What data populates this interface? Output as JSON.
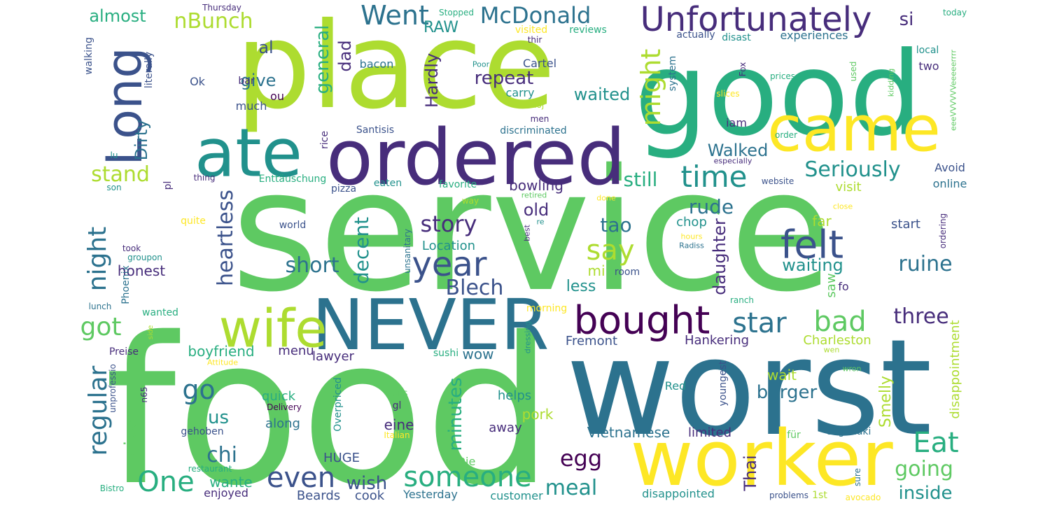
{
  "palette": {
    "c1": "#440154",
    "c2": "#472d7b",
    "c3": "#3b528b",
    "c4": "#2c728e",
    "c5": "#21918c",
    "c6": "#28ae80",
    "c7": "#5ec962",
    "c8": "#addc30",
    "c9": "#fde725",
    "background": "#ffffff"
  },
  "words": [
    {
      "text": "service",
      "color": "c7",
      "vertical": false
    },
    {
      "text": "food",
      "color": "c7",
      "vertical": false
    },
    {
      "text": "place",
      "color": "c8",
      "vertical": false
    },
    {
      "text": "good",
      "color": "c6",
      "vertical": false
    },
    {
      "text": "worst",
      "color": "c4",
      "vertical": false
    },
    {
      "text": "worker",
      "color": "c9",
      "vertical": false
    },
    {
      "text": "ordered",
      "color": "c2",
      "vertical": false
    },
    {
      "text": "ate",
      "color": "c5",
      "vertical": false
    },
    {
      "text": "came",
      "color": "c9",
      "vertical": false
    },
    {
      "text": "NEVER",
      "color": "c4",
      "vertical": false
    },
    {
      "text": "wife",
      "color": "c8",
      "vertical": false
    },
    {
      "text": "Long",
      "color": "c3",
      "vertical": true
    },
    {
      "text": "Unfortunately",
      "color": "c2",
      "vertical": false
    },
    {
      "text": "bought",
      "color": "c1",
      "vertical": false
    },
    {
      "text": "felt",
      "color": "c3",
      "vertical": false
    },
    {
      "text": "time",
      "color": "c5",
      "vertical": false
    },
    {
      "text": "might",
      "color": "c8",
      "vertical": true
    },
    {
      "text": "someone",
      "color": "c6",
      "vertical": false
    },
    {
      "text": "star",
      "color": "c4",
      "vertical": false
    },
    {
      "text": "bad",
      "color": "c7",
      "vertical": false
    },
    {
      "text": "Eat",
      "color": "c6",
      "vertical": false
    },
    {
      "text": "year",
      "color": "c3",
      "vertical": false
    },
    {
      "text": "say",
      "color": "c8",
      "vertical": false
    },
    {
      "text": "even",
      "color": "c3",
      "vertical": false
    },
    {
      "text": "One",
      "color": "c6",
      "vertical": false
    },
    {
      "text": "Went",
      "color": "c4",
      "vertical": false
    },
    {
      "text": "McDonald",
      "color": "c4",
      "vertical": false
    },
    {
      "text": "three",
      "color": "c2",
      "vertical": false
    },
    {
      "text": "ruine",
      "color": "c4",
      "vertical": false
    },
    {
      "text": "going",
      "color": "c7",
      "vertical": false
    },
    {
      "text": "inside",
      "color": "c5",
      "vertical": false
    },
    {
      "text": "Seriously",
      "color": "c5",
      "vertical": false
    },
    {
      "text": "regular",
      "color": "c4",
      "vertical": true
    },
    {
      "text": "night",
      "color": "c4",
      "vertical": true
    },
    {
      "text": "got",
      "color": "c7",
      "vertical": false
    },
    {
      "text": "go",
      "color": "c4",
      "vertical": false
    },
    {
      "text": "nBunch",
      "color": "c8",
      "vertical": false
    },
    {
      "text": "stand",
      "color": "c8",
      "vertical": false
    },
    {
      "text": "heartless",
      "color": "c3",
      "vertical": true
    },
    {
      "text": "story",
      "color": "c2",
      "vertical": false
    },
    {
      "text": "Blech",
      "color": "c3",
      "vertical": false
    },
    {
      "text": "short",
      "color": "c4",
      "vertical": false
    },
    {
      "text": "decent",
      "color": "c5",
      "vertical": true
    },
    {
      "text": "tao",
      "color": "c4",
      "vertical": false
    },
    {
      "text": "rude",
      "color": "c4",
      "vertical": false
    },
    {
      "text": "still",
      "color": "c6",
      "vertical": false
    },
    {
      "text": "waiting",
      "color": "c5",
      "vertical": false
    },
    {
      "text": "egg",
      "color": "c1",
      "vertical": false
    },
    {
      "text": "meal",
      "color": "c5",
      "vertical": false
    },
    {
      "text": "burger",
      "color": "c4",
      "vertical": false
    },
    {
      "text": "wish",
      "color": "c3",
      "vertical": false
    },
    {
      "text": "chi",
      "color": "c4",
      "vertical": false
    },
    {
      "text": "us",
      "color": "c5",
      "vertical": false
    },
    {
      "text": "given",
      "color": "c7",
      "vertical": true
    },
    {
      "text": "minutes",
      "color": "c6",
      "vertical": true
    },
    {
      "text": "general",
      "color": "c6",
      "vertical": true
    },
    {
      "text": "repeat",
      "color": "c2",
      "vertical": false
    },
    {
      "text": "waited",
      "color": "c5",
      "vertical": false
    },
    {
      "text": "Walked",
      "color": "c4",
      "vertical": false
    },
    {
      "text": "al",
      "color": "c3",
      "vertical": false
    },
    {
      "text": "give",
      "color": "c4",
      "vertical": false
    },
    {
      "text": "si",
      "color": "c2",
      "vertical": false
    },
    {
      "text": "almost",
      "color": "c6",
      "vertical": false
    },
    {
      "text": "RAW",
      "color": "c5",
      "vertical": false
    },
    {
      "text": "dad",
      "color": "c2",
      "vertical": true
    },
    {
      "text": "Hardly",
      "color": "c2",
      "vertical": true
    },
    {
      "text": "Dirty",
      "color": "c4",
      "vertical": true
    },
    {
      "text": "old",
      "color": "c2",
      "vertical": false
    },
    {
      "text": "bowling",
      "color": "c2",
      "vertical": false
    },
    {
      "text": "daughter",
      "color": "c2",
      "vertical": true
    },
    {
      "text": "less",
      "color": "c5",
      "vertical": false
    },
    {
      "text": "mi",
      "color": "c8",
      "vertical": false
    },
    {
      "text": "honest",
      "color": "c2",
      "vertical": false
    },
    {
      "text": "Location",
      "color": "c5",
      "vertical": false
    },
    {
      "text": "Charleston",
      "color": "c8",
      "vertical": false
    },
    {
      "text": "Hankering",
      "color": "c2",
      "vertical": false
    },
    {
      "text": "Fremont",
      "color": "c3",
      "vertical": false
    },
    {
      "text": "boyfriend",
      "color": "c6",
      "vertical": false
    },
    {
      "text": "menu",
      "color": "c2",
      "vertical": false
    },
    {
      "text": "lawyer",
      "color": "c2",
      "vertical": false
    },
    {
      "text": "wow",
      "color": "c4",
      "vertical": false
    },
    {
      "text": "Thai",
      "color": "c2",
      "vertical": true
    },
    {
      "text": "Smelly",
      "color": "c8",
      "vertical": true
    },
    {
      "text": "disappointment",
      "color": "c8",
      "vertical": true
    },
    {
      "text": "wait",
      "color": "c8",
      "vertical": false
    },
    {
      "text": "Vietnamese",
      "color": "c4",
      "vertical": false
    },
    {
      "text": "limited",
      "color": "c2",
      "vertical": false
    },
    {
      "text": "wante",
      "color": "c6",
      "vertical": false
    },
    {
      "text": "along",
      "color": "c4",
      "vertical": false
    },
    {
      "text": "quick",
      "color": "c6",
      "vertical": false
    },
    {
      "text": "HUGE",
      "color": "c3",
      "vertical": false
    },
    {
      "text": "eine",
      "color": "c2",
      "vertical": false
    },
    {
      "text": "pork",
      "color": "c8",
      "vertical": false
    },
    {
      "text": "helps",
      "color": "c5",
      "vertical": false
    },
    {
      "text": "away",
      "color": "c2",
      "vertical": false
    },
    {
      "text": "cook",
      "color": "c3",
      "vertical": false
    },
    {
      "text": "Beards",
      "color": "c3",
      "vertical": false
    },
    {
      "text": "enjoyed",
      "color": "c2",
      "vertical": false
    },
    {
      "text": "Yesterday",
      "color": "c4",
      "vertical": false
    },
    {
      "text": "customer",
      "color": "c5",
      "vertical": false
    },
    {
      "text": "disappointed",
      "color": "c5",
      "vertical": false
    },
    {
      "text": "Die",
      "color": "c7",
      "vertical": false
    },
    {
      "text": "visit",
      "color": "c8",
      "vertical": false
    },
    {
      "text": "start",
      "color": "c3",
      "vertical": false
    },
    {
      "text": "Avoid",
      "color": "c3",
      "vertical": false
    },
    {
      "text": "online",
      "color": "c4",
      "vertical": false
    },
    {
      "text": "far",
      "color": "c8",
      "vertical": false
    },
    {
      "text": "chop",
      "color": "c5",
      "vertical": false
    },
    {
      "text": "saw",
      "color": "c7",
      "vertical": true
    },
    {
      "text": "fo",
      "color": "c2",
      "vertical": false
    },
    {
      "text": "iam",
      "color": "c2",
      "vertical": false
    },
    {
      "text": "two",
      "color": "c2",
      "vertical": false
    },
    {
      "text": "local",
      "color": "c5",
      "vertical": false
    },
    {
      "text": "experiences",
      "color": "c4",
      "vertical": false
    },
    {
      "text": "actually",
      "color": "c3",
      "vertical": false
    },
    {
      "text": "disast",
      "color": "c5",
      "vertical": false
    },
    {
      "text": "reviews",
      "color": "c6",
      "vertical": false
    },
    {
      "text": "visited",
      "color": "c9",
      "vertical": false
    },
    {
      "text": "Stopped",
      "color": "c6",
      "vertical": false
    },
    {
      "text": "Thursday",
      "color": "c2",
      "vertical": false
    },
    {
      "text": "today",
      "color": "c6",
      "vertical": false
    },
    {
      "text": "walking",
      "color": "c3",
      "vertical": true
    },
    {
      "text": "literally",
      "color": "c3",
      "vertical": true
    },
    {
      "text": "bar",
      "color": "c2",
      "vertical": false
    },
    {
      "text": "Ok",
      "color": "c3",
      "vertical": false
    },
    {
      "text": "ou",
      "color": "c1",
      "vertical": false
    },
    {
      "text": "much",
      "color": "c3",
      "vertical": false
    },
    {
      "text": "bacon",
      "color": "c4",
      "vertical": false
    },
    {
      "text": "Cartel",
      "color": "c3",
      "vertical": false
    },
    {
      "text": "carry",
      "color": "c5",
      "vertical": false
    },
    {
      "text": "thir",
      "color": "c2",
      "vertical": false
    },
    {
      "text": "Poor",
      "color": "c5",
      "vertical": false
    },
    {
      "text": "moj",
      "color": "c8",
      "vertical": false
    },
    {
      "text": "men",
      "color": "c2",
      "vertical": false
    },
    {
      "text": "system",
      "color": "c4",
      "vertical": true
    },
    {
      "text": "Fox",
      "color": "c2",
      "vertical": true
    },
    {
      "text": "used",
      "color": "c7",
      "vertical": true
    },
    {
      "text": "prices",
      "color": "c6",
      "vertical": false
    },
    {
      "text": "slices",
      "color": "c9",
      "vertical": false
    },
    {
      "text": "kidding",
      "color": "c7",
      "vertical": true
    },
    {
      "text": "eeeVVVVVVeeeeerrrr",
      "color": "c7",
      "vertical": true
    },
    {
      "text": "order",
      "color": "c6",
      "vertical": false
    },
    {
      "text": "especially",
      "color": "c2",
      "vertical": false
    },
    {
      "text": "website",
      "color": "c3",
      "vertical": false
    },
    {
      "text": "close",
      "color": "c9",
      "vertical": false
    },
    {
      "text": "ordering",
      "color": "c2",
      "vertical": true
    },
    {
      "text": "Santisis",
      "color": "c3",
      "vertical": false
    },
    {
      "text": "discriminated",
      "color": "c4",
      "vertical": false
    },
    {
      "text": "rice",
      "color": "c2",
      "vertical": true
    },
    {
      "text": "pizza",
      "color": "c3",
      "vertical": false
    },
    {
      "text": "eaten",
      "color": "c5",
      "vertical": false
    },
    {
      "text": "favorite",
      "color": "c6",
      "vertical": false
    },
    {
      "text": "Enttäuschung",
      "color": "c6",
      "vertical": false
    },
    {
      "text": "thing",
      "color": "c2",
      "vertical": false
    },
    {
      "text": "pl",
      "color": "c2",
      "vertical": true
    },
    {
      "text": "lu",
      "color": "c5",
      "vertical": false
    },
    {
      "text": "son",
      "color": "c5",
      "vertical": false
    },
    {
      "text": "quite",
      "color": "c9",
      "vertical": false
    },
    {
      "text": "world",
      "color": "c3",
      "vertical": false
    },
    {
      "text": "way",
      "color": "c8",
      "vertical": false
    },
    {
      "text": "retired",
      "color": "c7",
      "vertical": false
    },
    {
      "text": "done",
      "color": "c9",
      "vertical": false
    },
    {
      "text": "re",
      "color": "c5",
      "vertical": false
    },
    {
      "text": "best",
      "color": "c2",
      "vertical": true
    },
    {
      "text": "hours",
      "color": "c9",
      "vertical": false
    },
    {
      "text": "Radiss",
      "color": "c4",
      "vertical": false
    },
    {
      "text": "took",
      "color": "c2",
      "vertical": false
    },
    {
      "text": "groupon",
      "color": "c5",
      "vertical": false
    },
    {
      "text": "Phoenix",
      "color": "c4",
      "vertical": true
    },
    {
      "text": "room",
      "color": "c3",
      "vertical": false
    },
    {
      "text": "unsanitary",
      "color": "c4",
      "vertical": true
    },
    {
      "text": "lunch",
      "color": "c4",
      "vertical": false
    },
    {
      "text": "wanted",
      "color": "c6",
      "vertical": false
    },
    {
      "text": "morning",
      "color": "c9",
      "vertical": false
    },
    {
      "text": "ranch",
      "color": "c6",
      "vertical": false
    },
    {
      "text": "dressing",
      "color": "c5",
      "vertical": true
    },
    {
      "text": "wen",
      "color": "c8",
      "vertical": false
    },
    {
      "text": "Preise",
      "color": "c2",
      "vertical": false
    },
    {
      "text": "Attitude",
      "color": "c9",
      "vertical": false
    },
    {
      "text": "unprofessio",
      "color": "c3",
      "vertical": true
    },
    {
      "text": "n65",
      "color": "c2",
      "vertical": true
    },
    {
      "text": "sushi",
      "color": "c6",
      "vertical": false
    },
    {
      "text": "Delivery",
      "color": "c1",
      "vertical": false
    },
    {
      "text": "gl",
      "color": "c2",
      "vertical": false
    },
    {
      "text": "TAPS",
      "color": "c7",
      "vertical": false
    },
    {
      "text": "Overpriced",
      "color": "c5",
      "vertical": true
    },
    {
      "text": "Italian",
      "color": "c9",
      "vertical": false
    },
    {
      "text": "gehoben",
      "color": "c3",
      "vertical": false
    },
    {
      "text": "restaurant",
      "color": "c6",
      "vertical": false
    },
    {
      "text": "Bistro",
      "color": "c6",
      "vertical": false
    },
    {
      "text": "Red",
      "color": "c5",
      "vertical": false
    },
    {
      "text": "youngest",
      "color": "c3",
      "vertical": true
    },
    {
      "text": "für",
      "color": "c7",
      "vertical": false
    },
    {
      "text": "saganaki",
      "color": "c4",
      "vertical": false
    },
    {
      "text": "sure",
      "color": "c4",
      "vertical": true
    },
    {
      "text": "wron",
      "color": "c7",
      "vertical": false
    },
    {
      "text": "problems",
      "color": "c3",
      "vertical": false
    },
    {
      "text": "1st",
      "color": "c8",
      "vertical": false
    },
    {
      "text": "avocado",
      "color": "c9",
      "vertical": false
    },
    {
      "text": "side",
      "color": "c8",
      "vertical": true
    }
  ]
}
